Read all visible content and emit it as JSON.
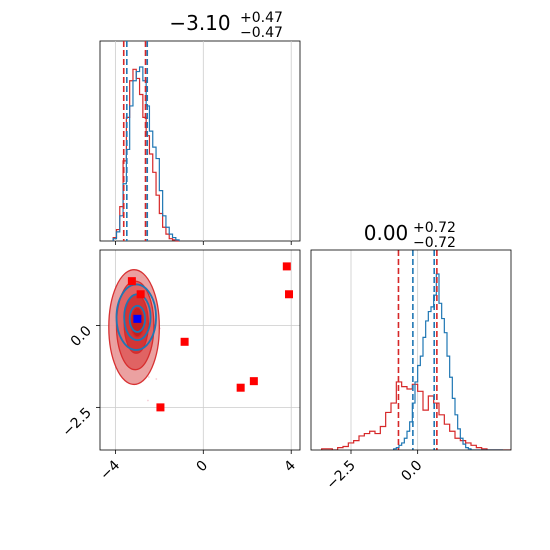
{
  "chart_data": [
    {
      "type": "step",
      "panel": "top-left",
      "title": {
        "value": "−3.10",
        "sup": "+0.47",
        "sub": "−0.47"
      },
      "xlim": [
        -4.7,
        4.4
      ],
      "xticks": [
        -4,
        0,
        4
      ],
      "grid": true,
      "blue_hist": {
        "bin_width": 0.15,
        "start": -4.1,
        "counts": [
          2,
          8,
          22,
          50,
          80,
          118,
          140,
          148,
          152,
          140,
          118,
          96,
          82,
          72,
          44,
          22,
          12,
          6,
          3,
          1
        ]
      },
      "red_hist": {
        "bin_width": 0.15,
        "start": -4.1,
        "counts": [
          3,
          10,
          30,
          70,
          108,
          140,
          150,
          142,
          128,
          108,
          92,
          76,
          60,
          40,
          24,
          12,
          6,
          2,
          1,
          0
        ]
      },
      "red_lines": [
        -3.62,
        -2.63
      ],
      "blue_lines": [
        -3.48,
        -2.55
      ]
    },
    {
      "type": "scatter-contour",
      "panel": "bottom-left",
      "xlim": [
        -4.7,
        4.4
      ],
      "ylim": [
        -3.8,
        2.3
      ],
      "xticks": [
        -4,
        0,
        4
      ],
      "yticks": [
        0.0,
        -2.5
      ],
      "grid": true,
      "red_contours": [
        {
          "cx": -3.15,
          "cy": -0.05,
          "rx": 1.15,
          "ry": 1.75,
          "fill": "#ea9c9c"
        },
        {
          "cx": -3.1,
          "cy": 0.0,
          "rx": 0.85,
          "ry": 1.35,
          "fill": "#e06060"
        },
        {
          "cx": -3.05,
          "cy": 0.05,
          "rx": 0.55,
          "ry": 0.9,
          "fill": "#d13434"
        },
        {
          "cx": -3.0,
          "cy": 0.1,
          "rx": 0.3,
          "ry": 0.45,
          "fill": "#c41e1e"
        }
      ],
      "blue_contours": [
        {
          "cx": -3.05,
          "cy": 0.25,
          "rx": 0.9,
          "ry": 1.0
        },
        {
          "cx": -3.0,
          "cy": 0.25,
          "rx": 0.6,
          "ry": 0.7
        },
        {
          "cx": -3.0,
          "cy": 0.2,
          "rx": 0.35,
          "ry": 0.4
        }
      ],
      "red_points": [
        [
          -3.25,
          1.35
        ],
        [
          -2.85,
          0.95
        ],
        [
          -0.85,
          -0.5
        ],
        [
          -1.95,
          -2.5
        ],
        [
          1.7,
          -1.9
        ],
        [
          2.3,
          -1.7
        ],
        [
          3.8,
          1.8
        ],
        [
          3.9,
          0.95
        ]
      ],
      "blue_point": [
        -3.0,
        0.2
      ]
    },
    {
      "type": "step",
      "panel": "bottom-right",
      "title": {
        "value": "0.00",
        "sup": "+0.72",
        "sub": "−0.72"
      },
      "xlim": [
        -4.0,
        3.5
      ],
      "xticks": [
        -2.5,
        0.0
      ],
      "grid": true,
      "blue_hist": {
        "bin_width": 0.1,
        "start": -0.9,
        "counts": [
          1,
          2,
          4,
          6,
          10,
          16,
          24,
          40,
          58,
          72,
          80,
          96,
          110,
          118,
          122,
          132,
          150,
          125,
          112,
          100,
          80,
          62,
          44,
          30,
          18,
          10,
          5,
          2,
          1,
          0,
          0,
          0,
          0,
          0,
          0,
          0,
          0,
          0,
          0,
          0,
          0
        ]
      },
      "red_hist": {
        "bin_width": 0.2,
        "start": -3.6,
        "counts": [
          1,
          1,
          0,
          2,
          3,
          6,
          8,
          12,
          14,
          16,
          14,
          20,
          32,
          40,
          58,
          54,
          52,
          56,
          50,
          34,
          46,
          40,
          30,
          22,
          16,
          10,
          8,
          6,
          4,
          2,
          1,
          0,
          0,
          0,
          0,
          0,
          0
        ]
      },
      "red_lines": [
        -0.72,
        0.72
      ],
      "blue_lines": [
        -0.18,
        0.62
      ]
    }
  ]
}
